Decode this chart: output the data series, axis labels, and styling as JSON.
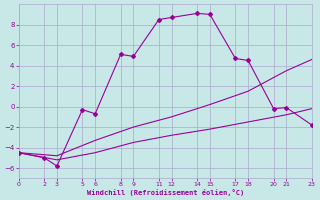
{
  "xlabel": "Windchill (Refroidissement éolien,°C)",
  "bg_color": "#c8e8e8",
  "grid_color": "#aaaacc",
  "line_color": "#990099",
  "xlim": [
    0,
    23
  ],
  "ylim": [
    -7,
    10
  ],
  "xticks": [
    0,
    2,
    3,
    5,
    6,
    8,
    9,
    11,
    12,
    14,
    15,
    17,
    18,
    20,
    21,
    23
  ],
  "yticks": [
    -6,
    -4,
    -2,
    0,
    2,
    4,
    6,
    8
  ],
  "series1_x": [
    0,
    2,
    3,
    5,
    6,
    8,
    9,
    11,
    12,
    14,
    15,
    17,
    18,
    20,
    21,
    23
  ],
  "series1_y": [
    -4.5,
    -5.0,
    -5.8,
    -0.3,
    -0.7,
    5.1,
    4.9,
    8.5,
    8.7,
    9.1,
    9.0,
    4.7,
    4.5,
    -0.2,
    -0.1,
    -1.8
  ],
  "series2_x": [
    0,
    3,
    6,
    9,
    12,
    15,
    18,
    21,
    23
  ],
  "series2_y": [
    -4.5,
    -4.8,
    -3.3,
    -2.0,
    -1.0,
    0.2,
    1.5,
    3.5,
    4.6
  ],
  "series3_x": [
    0,
    3,
    6,
    9,
    12,
    15,
    18,
    21,
    23
  ],
  "series3_y": [
    -4.5,
    -5.2,
    -4.5,
    -3.5,
    -2.8,
    -2.2,
    -1.5,
    -0.8,
    -0.2
  ]
}
